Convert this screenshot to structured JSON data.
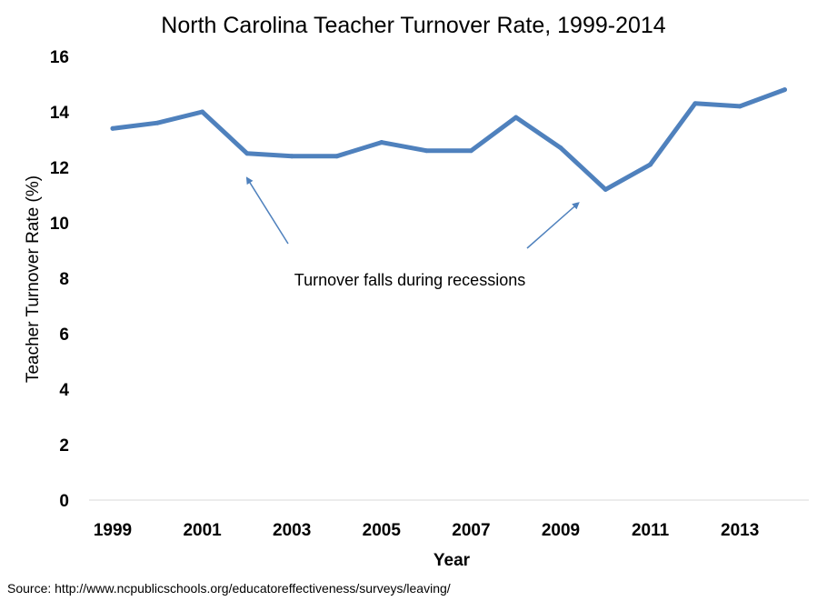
{
  "chart_data": {
    "type": "line",
    "title": "North Carolina Teacher Turnover Rate, 1999-2014",
    "xlabel": "Year",
    "ylabel": "Teacher Turnover Rate (%)",
    "ylim": [
      0,
      16
    ],
    "yticks": [
      0,
      2,
      4,
      6,
      8,
      10,
      12,
      14,
      16
    ],
    "xticks": [
      "1999",
      "2001",
      "2003",
      "2005",
      "2007",
      "2009",
      "2011",
      "2013"
    ],
    "grid": false,
    "series": [
      {
        "color": "#4f81bd",
        "x": [
          1999,
          2000,
          2001,
          2002,
          2003,
          2004,
          2005,
          2006,
          2007,
          2008,
          2009,
          2010,
          2011,
          2012,
          2013,
          2014
        ],
        "values": [
          13.4,
          13.6,
          14.0,
          12.5,
          12.4,
          12.4,
          12.9,
          12.6,
          12.6,
          13.8,
          12.7,
          11.2,
          12.1,
          14.3,
          14.2,
          14.8
        ]
      }
    ],
    "annotations": [
      {
        "text": "Turnover falls during recessions",
        "arrow_targets": [
          {
            "x": 2002,
            "y": 12.1
          },
          {
            "x": 2010,
            "y": 11.2
          }
        ]
      }
    ],
    "source": "Source: http://www.ncpublicschools.org/educatoreffectiveness/surveys/leaving/"
  }
}
